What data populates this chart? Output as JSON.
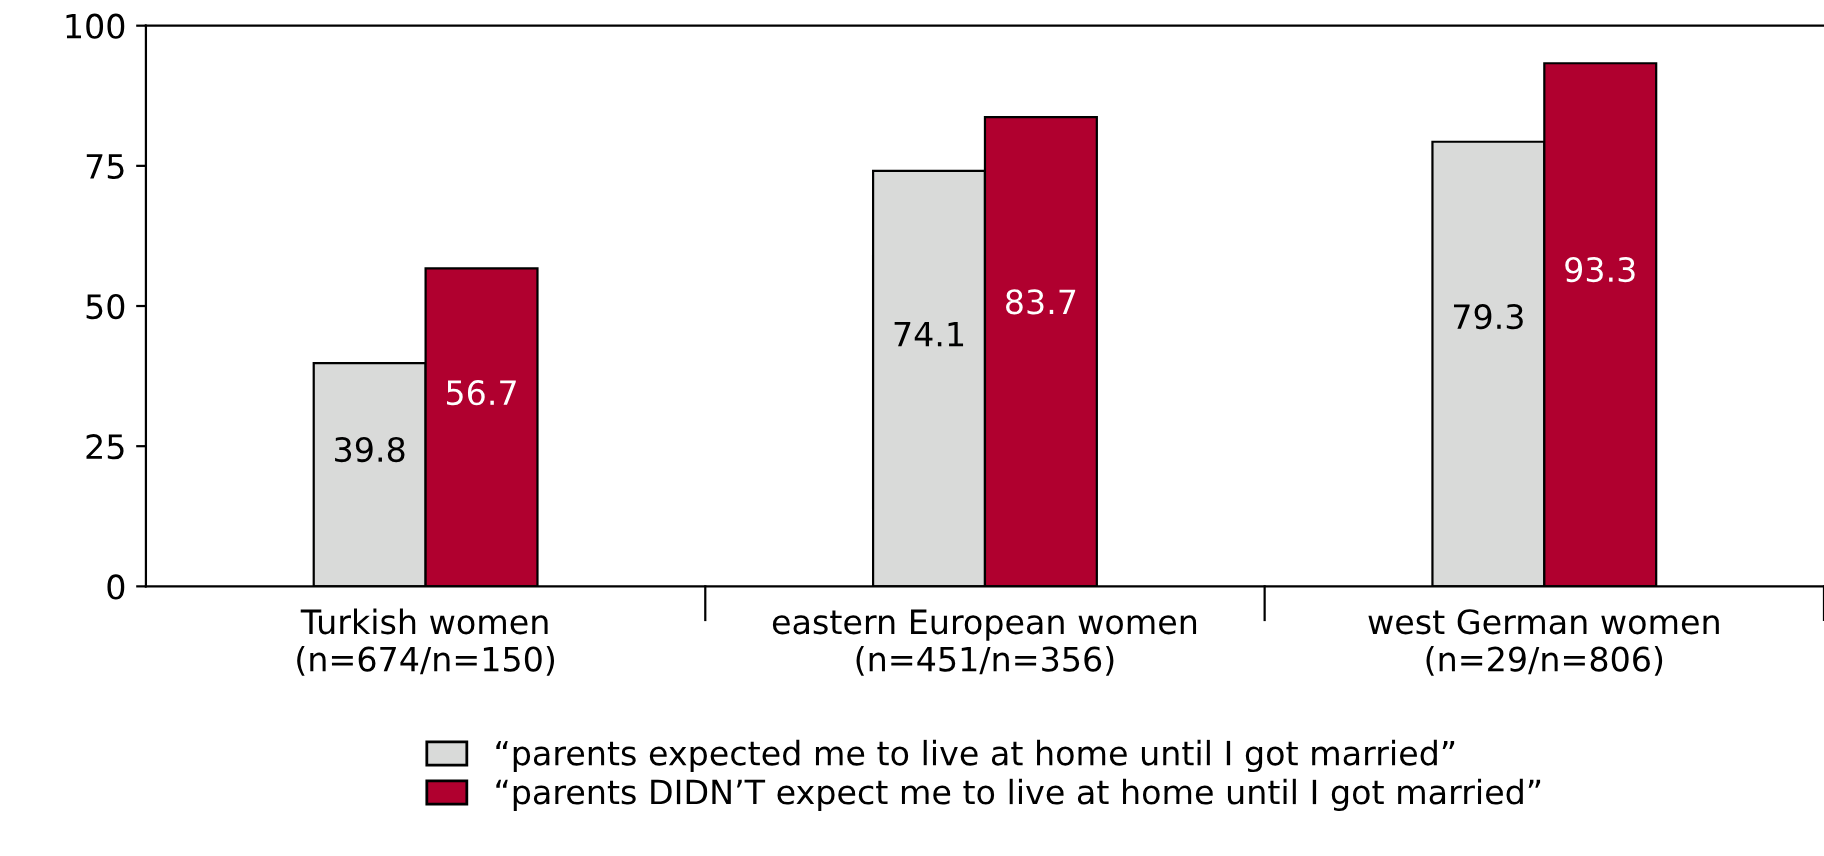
{
  "chart_data": {
    "type": "bar",
    "categories": [
      "Turkish women\n(n=674/n=150)",
      "eastern European women\n(n=451/n=356)",
      "west German women\n(n=29/n=806)"
    ],
    "series": [
      {
        "name": "“parents expected me to live at home until I got married”",
        "color": "#d9dad9",
        "values": [
          39.8,
          74.1,
          79.3
        ]
      },
      {
        "name": "“parents DIDN’T expect me to live at home until I got married”",
        "color": "#b0002f",
        "values": [
          56.7,
          83.7,
          93.3
        ]
      }
    ],
    "ylim": [
      0,
      100
    ],
    "yticks": [
      0,
      25,
      50,
      75,
      100
    ],
    "grid": false,
    "legend": "bottom",
    "data_labels": true
  }
}
